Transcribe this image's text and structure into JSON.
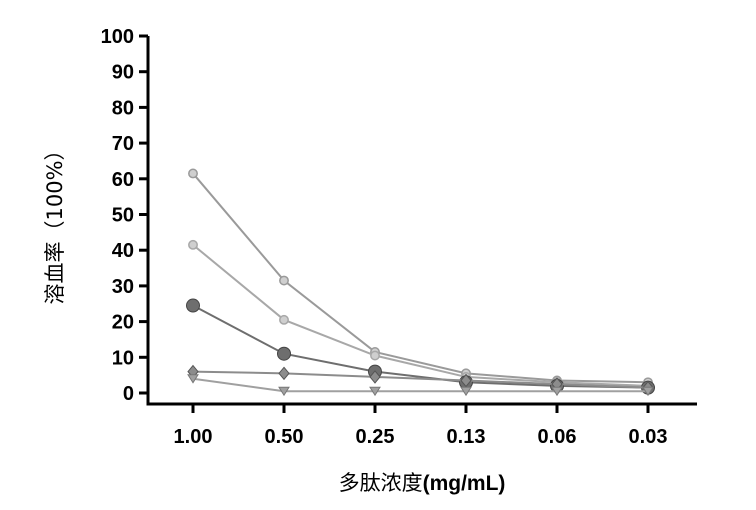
{
  "chart_data": {
    "type": "line",
    "xlabel_cn": "多肽浓度",
    "xlabel_unit": "(mg/mL)",
    "ylabel": "溶血率（100%）",
    "categories": [
      "1.00",
      "0.50",
      "0.25",
      "0.13",
      "0.06",
      "0.03"
    ],
    "ylim": [
      0,
      100
    ],
    "yticks": [
      "0",
      "10",
      "20",
      "30",
      "40",
      "50",
      "60",
      "70",
      "80",
      "90",
      "100"
    ],
    "grid": false,
    "series": [
      {
        "values": [
          61.5,
          31.5,
          11.5,
          5.5,
          3.5,
          3.0
        ],
        "color": "#9a9a9a",
        "marker": "circle-small"
      },
      {
        "values": [
          41.5,
          20.5,
          10.5,
          4.5,
          3.0,
          2.0
        ],
        "color": "#a8a8a8",
        "marker": "circle-small"
      },
      {
        "values": [
          24.5,
          11.0,
          6.0,
          3.0,
          2.0,
          1.5
        ],
        "color": "#6e6e6e",
        "marker": "circle-large"
      },
      {
        "values": [
          6.0,
          5.5,
          4.5,
          3.5,
          2.5,
          1.5
        ],
        "color": "#8c8c8c",
        "marker": "diamond"
      },
      {
        "values": [
          4.0,
          0.5,
          0.5,
          0.5,
          0.5,
          0.5
        ],
        "color": "#a0a0a0",
        "marker": "triangle-down"
      }
    ]
  }
}
